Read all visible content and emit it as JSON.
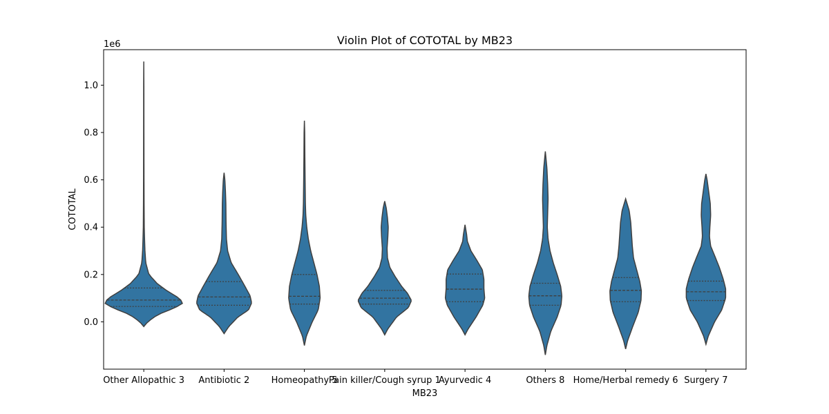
{
  "chart_data": {
    "type": "violin",
    "title": "Violin Plot of COTOTAL by MB23",
    "xlabel": "MB23",
    "ylabel": "COTOTAL",
    "y_offset_label": "1e6",
    "ylim": [
      -0.2,
      1.15
    ],
    "y_ticks": [
      0.0,
      0.2,
      0.4,
      0.6,
      0.8,
      1.0
    ],
    "y_tick_labels": [
      "0.0",
      "0.2",
      "0.4",
      "0.6",
      "0.8",
      "1.0"
    ],
    "grid": false,
    "color": "#3274a1",
    "edge_color": "#3f3f3f",
    "inner": "quartile",
    "categories": [
      "Other Allopathic 3",
      "Antibiotic 2",
      "Homeopathy 5",
      "Pain killer/Cough syrup 1",
      "Ayurvedic 4",
      "Others 8",
      "Home/Herbal remedy 6",
      "Surgery 7"
    ],
    "violins": [
      {
        "category": "Other Allopathic 3",
        "q1": 0.065,
        "median": 0.092,
        "q3": 0.143,
        "profile": [
          [
            -0.02,
            0.0
          ],
          [
            0.0,
            0.1
          ],
          [
            0.03,
            0.35
          ],
          [
            0.06,
            0.8
          ],
          [
            0.08,
            1.0
          ],
          [
            0.1,
            0.9
          ],
          [
            0.13,
            0.6
          ],
          [
            0.16,
            0.35
          ],
          [
            0.2,
            0.13
          ],
          [
            0.25,
            0.05
          ],
          [
            0.3,
            0.03
          ],
          [
            0.35,
            0.02
          ],
          [
            0.4,
            0.012
          ],
          [
            0.5,
            0.008
          ],
          [
            0.6,
            0.006
          ],
          [
            0.8,
            0.004
          ],
          [
            1.0,
            0.003
          ],
          [
            1.1,
            0.0
          ]
        ]
      },
      {
        "category": "Antibiotic 2",
        "q1": 0.07,
        "median": 0.105,
        "q3": 0.17,
        "profile": [
          [
            -0.05,
            0.0
          ],
          [
            -0.02,
            0.12
          ],
          [
            0.02,
            0.35
          ],
          [
            0.05,
            0.62
          ],
          [
            0.08,
            0.7
          ],
          [
            0.11,
            0.66
          ],
          [
            0.15,
            0.53
          ],
          [
            0.2,
            0.36
          ],
          [
            0.25,
            0.18
          ],
          [
            0.3,
            0.09
          ],
          [
            0.35,
            0.06
          ],
          [
            0.42,
            0.05
          ],
          [
            0.5,
            0.045
          ],
          [
            0.55,
            0.035
          ],
          [
            0.6,
            0.02
          ],
          [
            0.63,
            0.0
          ]
        ]
      },
      {
        "category": "Homeopathy 5",
        "q1": 0.075,
        "median": 0.108,
        "q3": 0.2,
        "profile": [
          [
            -0.1,
            0.0
          ],
          [
            -0.06,
            0.05
          ],
          [
            0.0,
            0.2
          ],
          [
            0.05,
            0.35
          ],
          [
            0.1,
            0.4
          ],
          [
            0.15,
            0.38
          ],
          [
            0.2,
            0.32
          ],
          [
            0.25,
            0.24
          ],
          [
            0.3,
            0.16
          ],
          [
            0.35,
            0.1
          ],
          [
            0.4,
            0.06
          ],
          [
            0.45,
            0.035
          ],
          [
            0.5,
            0.025
          ],
          [
            0.6,
            0.018
          ],
          [
            0.7,
            0.012
          ],
          [
            0.8,
            0.008
          ],
          [
            0.85,
            0.0
          ]
        ]
      },
      {
        "category": "Pain killer/Cough syrup 1",
        "q1": 0.075,
        "median": 0.1,
        "q3": 0.133,
        "profile": [
          [
            -0.055,
            0.0
          ],
          [
            -0.03,
            0.08
          ],
          [
            0.02,
            0.3
          ],
          [
            0.06,
            0.6
          ],
          [
            0.09,
            0.68
          ],
          [
            0.12,
            0.58
          ],
          [
            0.15,
            0.43
          ],
          [
            0.19,
            0.27
          ],
          [
            0.23,
            0.13
          ],
          [
            0.27,
            0.07
          ],
          [
            0.31,
            0.06
          ],
          [
            0.36,
            0.08
          ],
          [
            0.4,
            0.09
          ],
          [
            0.44,
            0.07
          ],
          [
            0.48,
            0.04
          ],
          [
            0.51,
            0.0
          ]
        ]
      },
      {
        "category": "Ayurvedic 4",
        "q1": 0.085,
        "median": 0.138,
        "q3": 0.202,
        "profile": [
          [
            -0.055,
            0.0
          ],
          [
            -0.03,
            0.08
          ],
          [
            0.02,
            0.28
          ],
          [
            0.07,
            0.45
          ],
          [
            0.1,
            0.5
          ],
          [
            0.14,
            0.48
          ],
          [
            0.18,
            0.48
          ],
          [
            0.22,
            0.44
          ],
          [
            0.26,
            0.3
          ],
          [
            0.3,
            0.15
          ],
          [
            0.34,
            0.06
          ],
          [
            0.37,
            0.04
          ],
          [
            0.41,
            0.0
          ]
        ]
      },
      {
        "category": "Others 8",
        "q1": 0.07,
        "median": 0.11,
        "q3": 0.163,
        "profile": [
          [
            -0.14,
            0.0
          ],
          [
            -0.1,
            0.04
          ],
          [
            -0.04,
            0.14
          ],
          [
            0.02,
            0.3
          ],
          [
            0.07,
            0.4
          ],
          [
            0.11,
            0.42
          ],
          [
            0.15,
            0.39
          ],
          [
            0.2,
            0.3
          ],
          [
            0.25,
            0.2
          ],
          [
            0.3,
            0.12
          ],
          [
            0.35,
            0.07
          ],
          [
            0.4,
            0.05
          ],
          [
            0.46,
            0.06
          ],
          [
            0.52,
            0.07
          ],
          [
            0.58,
            0.06
          ],
          [
            0.65,
            0.04
          ],
          [
            0.72,
            0.0
          ]
        ]
      },
      {
        "category": "Home/Herbal remedy 6",
        "q1": 0.085,
        "median": 0.133,
        "q3": 0.187,
        "profile": [
          [
            -0.115,
            0.0
          ],
          [
            -0.08,
            0.05
          ],
          [
            -0.02,
            0.18
          ],
          [
            0.04,
            0.32
          ],
          [
            0.09,
            0.39
          ],
          [
            0.13,
            0.4
          ],
          [
            0.17,
            0.36
          ],
          [
            0.22,
            0.28
          ],
          [
            0.27,
            0.2
          ],
          [
            0.32,
            0.17
          ],
          [
            0.37,
            0.15
          ],
          [
            0.42,
            0.13
          ],
          [
            0.47,
            0.09
          ],
          [
            0.52,
            0.0
          ]
        ]
      },
      {
        "category": "Surgery 7",
        "q1": 0.09,
        "median": 0.127,
        "q3": 0.172,
        "profile": [
          [
            -0.095,
            0.0
          ],
          [
            -0.06,
            0.06
          ],
          [
            0.0,
            0.22
          ],
          [
            0.05,
            0.4
          ],
          [
            0.1,
            0.5
          ],
          [
            0.14,
            0.5
          ],
          [
            0.18,
            0.44
          ],
          [
            0.23,
            0.34
          ],
          [
            0.28,
            0.22
          ],
          [
            0.32,
            0.12
          ],
          [
            0.36,
            0.09
          ],
          [
            0.4,
            0.1
          ],
          [
            0.45,
            0.12
          ],
          [
            0.5,
            0.11
          ],
          [
            0.55,
            0.07
          ],
          [
            0.6,
            0.03
          ],
          [
            0.625,
            0.0
          ]
        ]
      }
    ]
  }
}
